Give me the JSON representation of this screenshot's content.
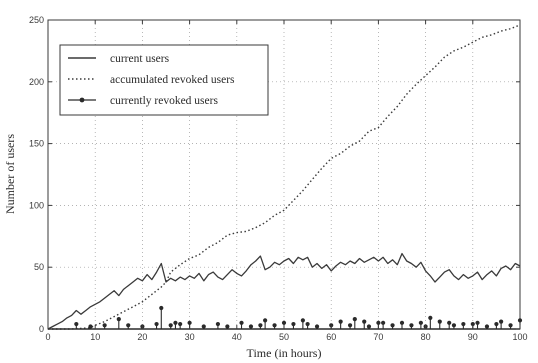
{
  "chart_data": {
    "type": "line",
    "title": "",
    "xlabel": "Time (in hours)",
    "ylabel": "Number of users",
    "xlim": [
      0,
      100
    ],
    "ylim": [
      0,
      250
    ],
    "xticks": [
      0,
      10,
      20,
      30,
      40,
      50,
      60,
      70,
      80,
      90,
      100
    ],
    "yticks": [
      0,
      50,
      100,
      150,
      200,
      250
    ],
    "grid": true,
    "legend_position": "top-left",
    "series": [
      {
        "name": "current users",
        "style": "solid",
        "color": "#3a3a3a",
        "points": [
          [
            0,
            0
          ],
          [
            1,
            2
          ],
          [
            2,
            4
          ],
          [
            3,
            6
          ],
          [
            4,
            9
          ],
          [
            5,
            11
          ],
          [
            6,
            15
          ],
          [
            7,
            12
          ],
          [
            8,
            15
          ],
          [
            9,
            18
          ],
          [
            10,
            20
          ],
          [
            11,
            22
          ],
          [
            12,
            25
          ],
          [
            13,
            28
          ],
          [
            14,
            31
          ],
          [
            15,
            27
          ],
          [
            16,
            32
          ],
          [
            17,
            35
          ],
          [
            18,
            38
          ],
          [
            19,
            41
          ],
          [
            20,
            39
          ],
          [
            21,
            44
          ],
          [
            22,
            40
          ],
          [
            23,
            46
          ],
          [
            24,
            53
          ],
          [
            25,
            38
          ],
          [
            26,
            41
          ],
          [
            27,
            39
          ],
          [
            28,
            42
          ],
          [
            29,
            40
          ],
          [
            30,
            43
          ],
          [
            31,
            41
          ],
          [
            32,
            45
          ],
          [
            33,
            39
          ],
          [
            34,
            44
          ],
          [
            35,
            46
          ],
          [
            36,
            42
          ],
          [
            37,
            40
          ],
          [
            38,
            44
          ],
          [
            39,
            48
          ],
          [
            40,
            45
          ],
          [
            41,
            43
          ],
          [
            42,
            47
          ],
          [
            43,
            52
          ],
          [
            44,
            55
          ],
          [
            45,
            59
          ],
          [
            46,
            48
          ],
          [
            47,
            50
          ],
          [
            48,
            54
          ],
          [
            49,
            52
          ],
          [
            50,
            55
          ],
          [
            51,
            57
          ],
          [
            52,
            53
          ],
          [
            53,
            58
          ],
          [
            54,
            56
          ],
          [
            55,
            58
          ],
          [
            56,
            50
          ],
          [
            57,
            53
          ],
          [
            58,
            49
          ],
          [
            59,
            52
          ],
          [
            60,
            47
          ],
          [
            61,
            51
          ],
          [
            62,
            54
          ],
          [
            63,
            52
          ],
          [
            64,
            55
          ],
          [
            65,
            53
          ],
          [
            66,
            57
          ],
          [
            67,
            54
          ],
          [
            68,
            56
          ],
          [
            69,
            58
          ],
          [
            70,
            55
          ],
          [
            71,
            58
          ],
          [
            72,
            53
          ],
          [
            73,
            56
          ],
          [
            74,
            52
          ],
          [
            75,
            61
          ],
          [
            76,
            55
          ],
          [
            77,
            53
          ],
          [
            78,
            50
          ],
          [
            79,
            54
          ],
          [
            80,
            47
          ],
          [
            81,
            43
          ],
          [
            82,
            38
          ],
          [
            83,
            42
          ],
          [
            84,
            46
          ],
          [
            85,
            48
          ],
          [
            86,
            43
          ],
          [
            87,
            40
          ],
          [
            88,
            44
          ],
          [
            89,
            41
          ],
          [
            90,
            43
          ],
          [
            91,
            46
          ],
          [
            92,
            40
          ],
          [
            93,
            44
          ],
          [
            94,
            47
          ],
          [
            95,
            43
          ],
          [
            96,
            49
          ],
          [
            97,
            51
          ],
          [
            98,
            48
          ],
          [
            99,
            53
          ],
          [
            100,
            51
          ]
        ]
      },
      {
        "name": "accumulated revoked users",
        "style": "dotted",
        "color": "#3a3a3a",
        "points": [
          [
            0,
            0
          ],
          [
            5,
            0
          ],
          [
            9,
            1
          ],
          [
            10,
            3
          ],
          [
            12,
            6
          ],
          [
            14,
            10
          ],
          [
            16,
            14
          ],
          [
            18,
            18
          ],
          [
            20,
            22
          ],
          [
            22,
            28
          ],
          [
            24,
            34
          ],
          [
            25,
            38
          ],
          [
            26,
            46
          ],
          [
            28,
            52
          ],
          [
            30,
            57
          ],
          [
            32,
            60
          ],
          [
            34,
            66
          ],
          [
            36,
            70
          ],
          [
            38,
            76
          ],
          [
            40,
            78
          ],
          [
            42,
            79
          ],
          [
            44,
            82
          ],
          [
            46,
            86
          ],
          [
            48,
            92
          ],
          [
            50,
            96
          ],
          [
            52,
            104
          ],
          [
            54,
            112
          ],
          [
            56,
            121
          ],
          [
            58,
            130
          ],
          [
            60,
            138
          ],
          [
            62,
            142
          ],
          [
            64,
            148
          ],
          [
            66,
            152
          ],
          [
            68,
            160
          ],
          [
            70,
            163
          ],
          [
            72,
            172
          ],
          [
            74,
            180
          ],
          [
            76,
            190
          ],
          [
            78,
            198
          ],
          [
            80,
            205
          ],
          [
            82,
            212
          ],
          [
            84,
            220
          ],
          [
            86,
            225
          ],
          [
            88,
            228
          ],
          [
            90,
            232
          ],
          [
            92,
            236
          ],
          [
            94,
            238
          ],
          [
            96,
            241
          ],
          [
            98,
            243
          ],
          [
            100,
            246
          ]
        ]
      },
      {
        "name": "currently revoked users",
        "style": "stem",
        "color": "#2a2a2a",
        "points": [
          [
            6,
            4
          ],
          [
            9,
            2
          ],
          [
            12,
            3
          ],
          [
            15,
            8
          ],
          [
            17,
            3
          ],
          [
            20,
            2
          ],
          [
            23,
            4
          ],
          [
            24,
            17
          ],
          [
            26,
            3
          ],
          [
            27,
            5
          ],
          [
            28,
            4
          ],
          [
            30,
            5
          ],
          [
            33,
            2
          ],
          [
            36,
            4
          ],
          [
            38,
            2
          ],
          [
            41,
            5
          ],
          [
            43,
            2
          ],
          [
            45,
            3
          ],
          [
            46,
            7
          ],
          [
            48,
            3
          ],
          [
            50,
            5
          ],
          [
            52,
            4
          ],
          [
            54,
            7
          ],
          [
            55,
            4
          ],
          [
            57,
            2
          ],
          [
            60,
            3
          ],
          [
            62,
            6
          ],
          [
            64,
            3
          ],
          [
            65,
            8
          ],
          [
            67,
            6
          ],
          [
            68,
            2
          ],
          [
            70,
            5
          ],
          [
            71,
            5
          ],
          [
            73,
            3
          ],
          [
            75,
            5
          ],
          [
            77,
            3
          ],
          [
            79,
            5
          ],
          [
            80,
            2
          ],
          [
            81,
            9
          ],
          [
            83,
            6
          ],
          [
            85,
            5
          ],
          [
            86,
            3
          ],
          [
            88,
            4
          ],
          [
            90,
            4
          ],
          [
            91,
            5
          ],
          [
            93,
            2
          ],
          [
            95,
            4
          ],
          [
            96,
            6
          ],
          [
            98,
            3
          ],
          [
            100,
            7
          ]
        ]
      }
    ]
  }
}
